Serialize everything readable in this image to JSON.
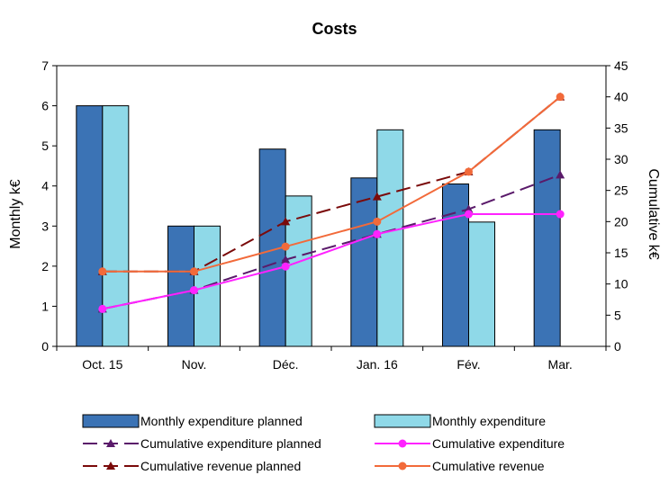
{
  "chart_data": {
    "type": "bar",
    "title": "Costs",
    "categories": [
      "Oct. 15",
      "Nov.",
      "Déc.",
      "Jan. 16",
      "Fév.",
      "Mar."
    ],
    "ylabel": "Monthly k€",
    "y2label": "Cumulative k€",
    "ylim": [
      0,
      7
    ],
    "y2lim": [
      0,
      45
    ],
    "yticks": [
      0,
      1,
      2,
      3,
      4,
      5,
      6,
      7
    ],
    "y2ticks": [
      0,
      5,
      10,
      15,
      20,
      25,
      30,
      35,
      40,
      45
    ],
    "grid": false,
    "legend_position": "bottom",
    "series": [
      {
        "name": "Monthly expenditure planned",
        "kind": "bar",
        "axis": "left",
        "color": "#3b73b5",
        "values": [
          6,
          3,
          4.92,
          4.2,
          4.05,
          5.4
        ]
      },
      {
        "name": "Monthly expenditure",
        "kind": "bar",
        "axis": "left",
        "color": "#8fd9e8",
        "values": [
          6,
          3,
          3.75,
          5.4,
          3.1,
          null
        ]
      },
      {
        "name": "Cumulative expenditure planned",
        "kind": "line",
        "axis": "right",
        "color": "#5a1a6a",
        "dash": true,
        "marker": "triangle",
        "values": [
          6,
          9,
          13.9,
          18,
          22,
          27.5
        ]
      },
      {
        "name": "Cumulative expenditure",
        "kind": "line",
        "axis": "right",
        "color": "#ff22ff",
        "dash": false,
        "marker": "circle",
        "values": [
          6,
          9,
          12.8,
          18,
          21.2,
          21.2
        ]
      },
      {
        "name": "Cumulative revenue planned",
        "kind": "line",
        "axis": "right",
        "color": "#7a0a0a",
        "dash": true,
        "marker": "triangle",
        "values": [
          12,
          12,
          20,
          24,
          28,
          40
        ]
      },
      {
        "name": "Cumulative revenue",
        "kind": "line",
        "axis": "right",
        "color": "#f26a3a",
        "dash": false,
        "marker": "circle",
        "values": [
          12,
          12,
          16,
          20,
          28,
          40
        ]
      }
    ]
  }
}
